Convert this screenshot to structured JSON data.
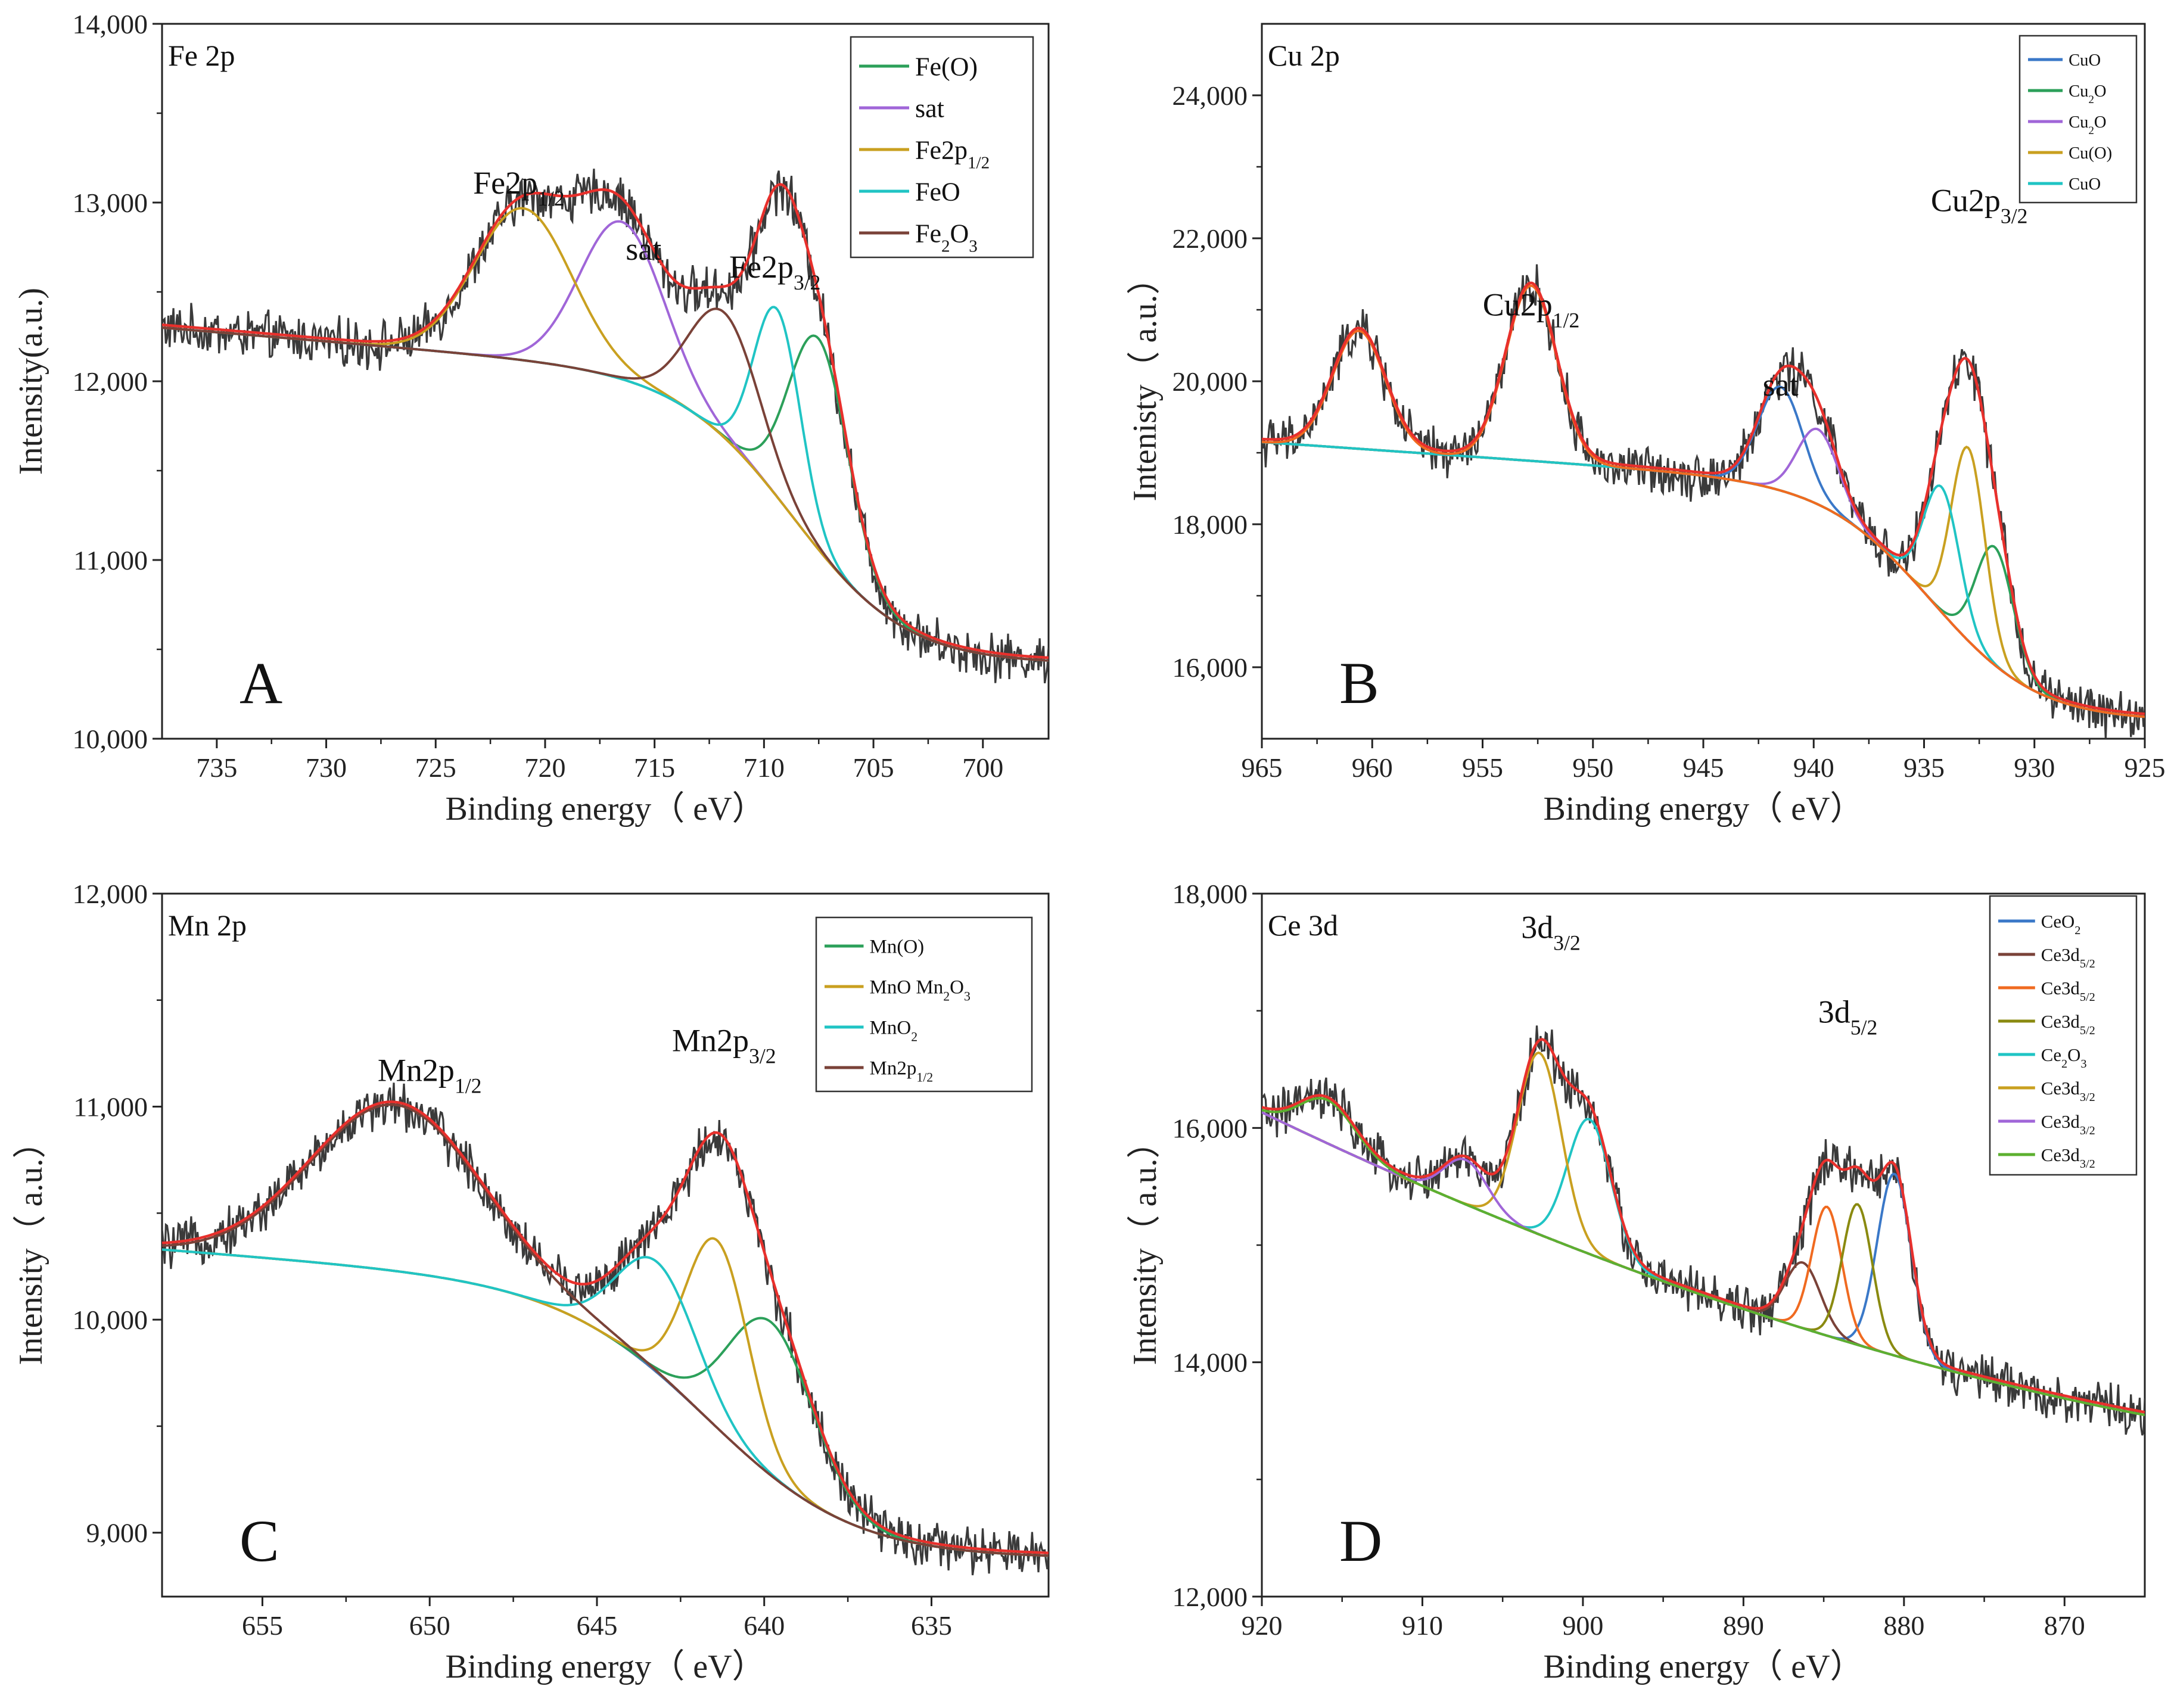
{
  "charts": [
    {
      "id": "A",
      "panel_title": "Fe 2p",
      "panel_letter": "A",
      "xlabel": "Binding energy（ eV）",
      "ylabel": "Intensity(a.u.)",
      "xlim": [
        737.5,
        697
      ],
      "ylim": [
        10000,
        14000
      ],
      "xticks": [
        735,
        730,
        725,
        720,
        715,
        710,
        705,
        700
      ],
      "yticks": [
        10000,
        11000,
        12000,
        13000,
        14000
      ],
      "ytick_labels": [
        "10,000",
        "11,000",
        "12,000",
        "13,000",
        "14,000"
      ],
      "annotations": [
        {
          "base": "Fe2p",
          "sub": "1/2",
          "x": 721.2,
          "y": 13050
        },
        {
          "base": "sat",
          "sub": "",
          "x": 715.5,
          "y": 12680
        },
        {
          "base": "Fe2p",
          "sub": "3/2",
          "x": 709.5,
          "y": 12580
        }
      ],
      "legend": [
        {
          "base": "Fe(O)",
          "sub": "",
          "color": "#2ca05a"
        },
        {
          "base": "sat",
          "sub": "",
          "color": "#a066d8"
        },
        {
          "base": "Fe2p",
          "sub": "1/2",
          "color": "#c9a020"
        },
        {
          "base": "FeO",
          "sub": "",
          "color": "#20c4c4"
        },
        {
          "base": "Fe",
          "sub": "2",
          "base2": "O",
          "sub2": "3",
          "color": "#7a4238"
        }
      ],
      "legend_scale": 1.0
    },
    {
      "id": "B",
      "panel_title": "Cu 2p",
      "panel_letter": "B",
      "xlabel": "Binding energy（ eV）",
      "ylabel": "Intenisty（ a.u.）",
      "xlim": [
        965,
        925
      ],
      "ylim": [
        15000,
        25000
      ],
      "xticks": [
        965,
        960,
        955,
        950,
        945,
        940,
        935,
        930,
        925
      ],
      "yticks": [
        16000,
        18000,
        20000,
        22000,
        24000
      ],
      "ytick_labels": [
        "16,000",
        "18,000",
        "20,000",
        "22,000",
        "24,000"
      ],
      "annotations": [
        {
          "base": "Cu2p",
          "sub": "1/2",
          "x": 952.8,
          "y": 20920
        },
        {
          "base": "sat",
          "sub": "",
          "x": 941.5,
          "y": 19800
        },
        {
          "base": "Cu2p",
          "sub": "3/2",
          "x": 932.5,
          "y": 22380
        }
      ],
      "legend": [
        {
          "base": "CuO",
          "sub": "",
          "color": "#3a78c8"
        },
        {
          "base": "Cu",
          "sub": "2",
          "base2": "O",
          "sub2": "",
          "color": "#2ca05a"
        },
        {
          "base": "Cu",
          "sub": "2",
          "base2": "O",
          "sub2": "",
          "color": "#a066d8"
        },
        {
          "base": "Cu(O)",
          "sub": "",
          "color": "#c9a020"
        },
        {
          "base": "CuO",
          "sub": "",
          "color": "#20c4c4"
        }
      ],
      "legend_scale": 0.65
    },
    {
      "id": "C",
      "panel_title": "Mn 2p",
      "panel_letter": "C",
      "xlabel": "Binding energy（ eV）",
      "ylabel": "Intensity（ a.u.）",
      "xlim": [
        658,
        631.5
      ],
      "ylim": [
        8700,
        12000
      ],
      "xticks": [
        655,
        650,
        645,
        640,
        635
      ],
      "yticks": [
        9000,
        10000,
        11000,
        12000
      ],
      "ytick_labels": [
        "9,000",
        "10,000",
        "11,000",
        "12,000"
      ],
      "annotations": [
        {
          "base": "Mn2p",
          "sub": "1/2",
          "x": 650.0,
          "y": 11120
        },
        {
          "base": "Mn2p",
          "sub": "3/2",
          "x": 641.2,
          "y": 11260
        }
      ],
      "legend": [
        {
          "base": "Mn(O)",
          "sub": "",
          "color": "#2ca05a"
        },
        {
          "base": "MnO Mn",
          "sub": "2",
          "base2": "O",
          "sub2": "3",
          "color": "#c9a020"
        },
        {
          "base": "MnO",
          "sub": "2",
          "color": "#20c4c4"
        },
        {
          "base": "Mn2p",
          "sub": "1/2",
          "color": "#7a4238"
        }
      ],
      "legend_scale": 0.75
    },
    {
      "id": "D",
      "panel_title": "Ce 3d",
      "panel_letter": "D",
      "xlabel": "Binding energy（ eV）",
      "ylabel": "Intensity（ a.u.）",
      "xlim": [
        920,
        865
      ],
      "ylim": [
        12000,
        18000
      ],
      "xticks": [
        920,
        910,
        900,
        890,
        880,
        870
      ],
      "yticks": [
        12000,
        14000,
        16000,
        18000
      ],
      "ytick_labels": [
        "12,000",
        "14,000",
        "16,000",
        "18,000"
      ],
      "annotations": [
        {
          "base": "3d",
          "sub": "3/2",
          "x": 902.0,
          "y": 17620
        },
        {
          "base": "3d",
          "sub": "5/2",
          "x": 883.5,
          "y": 16900
        }
      ],
      "legend": [
        {
          "base": "CeO",
          "sub": "2",
          "color": "#3a78c8"
        },
        {
          "base": "Ce3d",
          "sub": "5/2",
          "color": "#7a4238"
        },
        {
          "base": "Ce3d",
          "sub": "5/2",
          "color": "#f06a20"
        },
        {
          "base": "Ce3d",
          "sub": "5/2",
          "color": "#8a8a10"
        },
        {
          "base": "Ce",
          "sub": "2",
          "base2": "O",
          "sub2": "3",
          "color": "#20c4c4"
        },
        {
          "base": "Ce3d",
          "sub": "3/2",
          "color": "#c9a020"
        },
        {
          "base": "Ce3d",
          "sub": "3/2",
          "color": "#a066d8"
        },
        {
          "base": "Ce3d",
          "sub": "3/2",
          "color": "#5cb030"
        }
      ],
      "legend_scale": 0.7
    }
  ],
  "chart_data": [
    {
      "type": "line",
      "title": "Fe 2p",
      "xlabel": "Binding energy（ eV）",
      "ylabel": "Intensity(a.u.)",
      "xlim": [
        737.5,
        697
      ],
      "ylim": [
        10000,
        14000
      ],
      "background": {
        "type": "shirley",
        "start": 12300,
        "end": 10420,
        "center": 708.5,
        "width": 2.6,
        "start_x": 737.5,
        "end_x": 697
      },
      "series": [
        {
          "name": "Fe(O)",
          "color": "#2ca05a",
          "peaks": [
            {
              "center": 707.5,
              "amplitude": 1180,
              "fwhm": 3.2
            }
          ]
        },
        {
          "name": "sat",
          "color": "#a066d8",
          "peaks": [
            {
              "center": 716.5,
              "amplitude": 880,
              "fwhm": 4.5
            }
          ]
        },
        {
          "name": "Fe2p1/2",
          "color": "#c9a020",
          "peaks": [
            {
              "center": 721.0,
              "amplitude": 850,
              "fwhm": 5.2
            }
          ]
        },
        {
          "name": "FeO",
          "color": "#20c4c4",
          "peaks": [
            {
              "center": 709.4,
              "amplitude": 1050,
              "fwhm": 2.5
            }
          ]
        },
        {
          "name": "Fe2O3",
          "color": "#7a4238",
          "peaks": [
            {
              "center": 711.8,
              "amplitude": 700,
              "fwhm": 3.8
            }
          ]
        }
      ],
      "envelope_color": "#e8302c",
      "raw_color": "#3a3a3a"
    },
    {
      "type": "line",
      "title": "Cu 2p",
      "xlabel": "Binding energy（ eV）",
      "ylabel": "Intenisty（ a.u.）",
      "xlim": [
        965,
        925
      ],
      "ylim": [
        15000,
        25000
      ],
      "background": {
        "type": "shirley",
        "start": 19150,
        "end": 15250,
        "center": 934.5,
        "width": 2.4,
        "start_x": 965,
        "end_x": 925
      },
      "series": [
        {
          "name": "CuO",
          "color": "#3a78c8",
          "peaks": [
            {
              "center": 941.5,
              "amplitude": 1450,
              "fwhm": 2.4
            }
          ]
        },
        {
          "name": "Cu2O",
          "color": "#2ca05a",
          "peaks": [
            {
              "center": 931.8,
              "amplitude": 1650,
              "fwhm": 2.0
            }
          ]
        },
        {
          "name": "Cu2O",
          "color": "#a066d8",
          "peaks": [
            {
              "center": 939.8,
              "amplitude": 1050,
              "fwhm": 2.2
            }
          ]
        },
        {
          "name": "Cu(O)",
          "color": "#c9a020",
          "peaks": [
            {
              "center": 933.0,
              "amplitude": 2700,
              "fwhm": 1.8
            }
          ]
        },
        {
          "name": "CuO",
          "color": "#20c4c4",
          "peaks": [
            {
              "center": 934.2,
              "amplitude": 1750,
              "fwhm": 1.9
            }
          ]
        },
        {
          "name": "Cu2p1/2",
          "color": "#f06a20",
          "peaks": [
            {
              "center": 960.6,
              "amplitude": 1650,
              "fwhm": 2.8
            },
            {
              "center": 952.8,
              "amplitude": 2450,
              "fwhm": 2.7
            }
          ]
        }
      ],
      "envelope_color": "#e8302c",
      "raw_color": "#3a3a3a"
    },
    {
      "type": "line",
      "title": "Mn 2p",
      "xlabel": "Binding energy（ eV）",
      "ylabel": "Intensity（ a.u.）",
      "xlim": [
        658,
        631.5
      ],
      "ylim": [
        8700,
        12000
      ],
      "background": {
        "type": "shirley",
        "start": 10330,
        "end": 8880,
        "center": 641.5,
        "width": 2.2,
        "start_x": 658,
        "end_x": 631.5
      },
      "series": [
        {
          "name": "Mn(O)",
          "color": "#2ca05a",
          "peaks": [
            {
              "center": 639.8,
              "amplitude": 720,
              "fwhm": 3.0
            }
          ]
        },
        {
          "name": "MnO Mn2O3",
          "color": "#c9a020",
          "peaks": [
            {
              "center": 641.4,
              "amplitude": 880,
              "fwhm": 2.2
            }
          ]
        },
        {
          "name": "MnO2",
          "color": "#20c4c4",
          "peaks": [
            {
              "center": 643.2,
              "amplitude": 520,
              "fwhm": 2.8
            }
          ]
        },
        {
          "name": "Mn2p1/2",
          "color": "#7a4238",
          "peaks": [
            {
              "center": 651.0,
              "amplitude": 780,
              "fwhm": 6.0
            }
          ]
        }
      ],
      "envelope_color": "#e8302c",
      "raw_color": "#3a3a3a"
    },
    {
      "type": "line",
      "title": "Ce 3d",
      "xlabel": "Binding energy（ eV）",
      "ylabel": "Intensity（ a.u.）",
      "xlim": [
        920,
        865
      ],
      "ylim": [
        12000,
        18000
      ],
      "background": {
        "type": "linear-curved",
        "start": 16100,
        "end": 13550,
        "start_x": 919.5,
        "end_x": 865
      },
      "series": [
        {
          "name": "CeO2",
          "color": "#3a78c8",
          "peaks": [
            {
              "center": 880.6,
              "amplitude": 1550,
              "fwhm": 2.5
            }
          ]
        },
        {
          "name": "Ce3d5/2",
          "color": "#7a4238",
          "peaks": [
            {
              "center": 886.3,
              "amplitude": 560,
              "fwhm": 2.6
            }
          ]
        },
        {
          "name": "Ce3d5/2",
          "color": "#f06a20",
          "peaks": [
            {
              "center": 884.8,
              "amplitude": 1100,
              "fwhm": 2.2
            }
          ]
        },
        {
          "name": "Ce3d5/2",
          "color": "#8a8a10",
          "peaks": [
            {
              "center": 882.9,
              "amplitude": 1200,
              "fwhm": 2.2
            }
          ]
        },
        {
          "name": "Ce2O3",
          "color": "#20c4c4",
          "peaks": [
            {
              "center": 899.6,
              "amplitude": 1150,
              "fwhm": 3.2
            }
          ]
        },
        {
          "name": "Ce3d3/2",
          "color": "#c9a020",
          "peaks": [
            {
              "center": 902.7,
              "amplitude": 1550,
              "fwhm": 3.2
            }
          ]
        },
        {
          "name": "Ce3d3/2",
          "color": "#a066d8",
          "peaks": [
            {
              "center": 907.3,
              "amplitude": 380,
              "fwhm": 3.2
            }
          ]
        },
        {
          "name": "Ce3d3/2",
          "color": "#5cb030",
          "peaks": [
            {
              "center": 915.9,
              "amplitude": 370,
              "fwhm": 4.0
            }
          ]
        }
      ],
      "envelope_color": "#e8302c",
      "raw_color": "#3a3a3a"
    }
  ]
}
